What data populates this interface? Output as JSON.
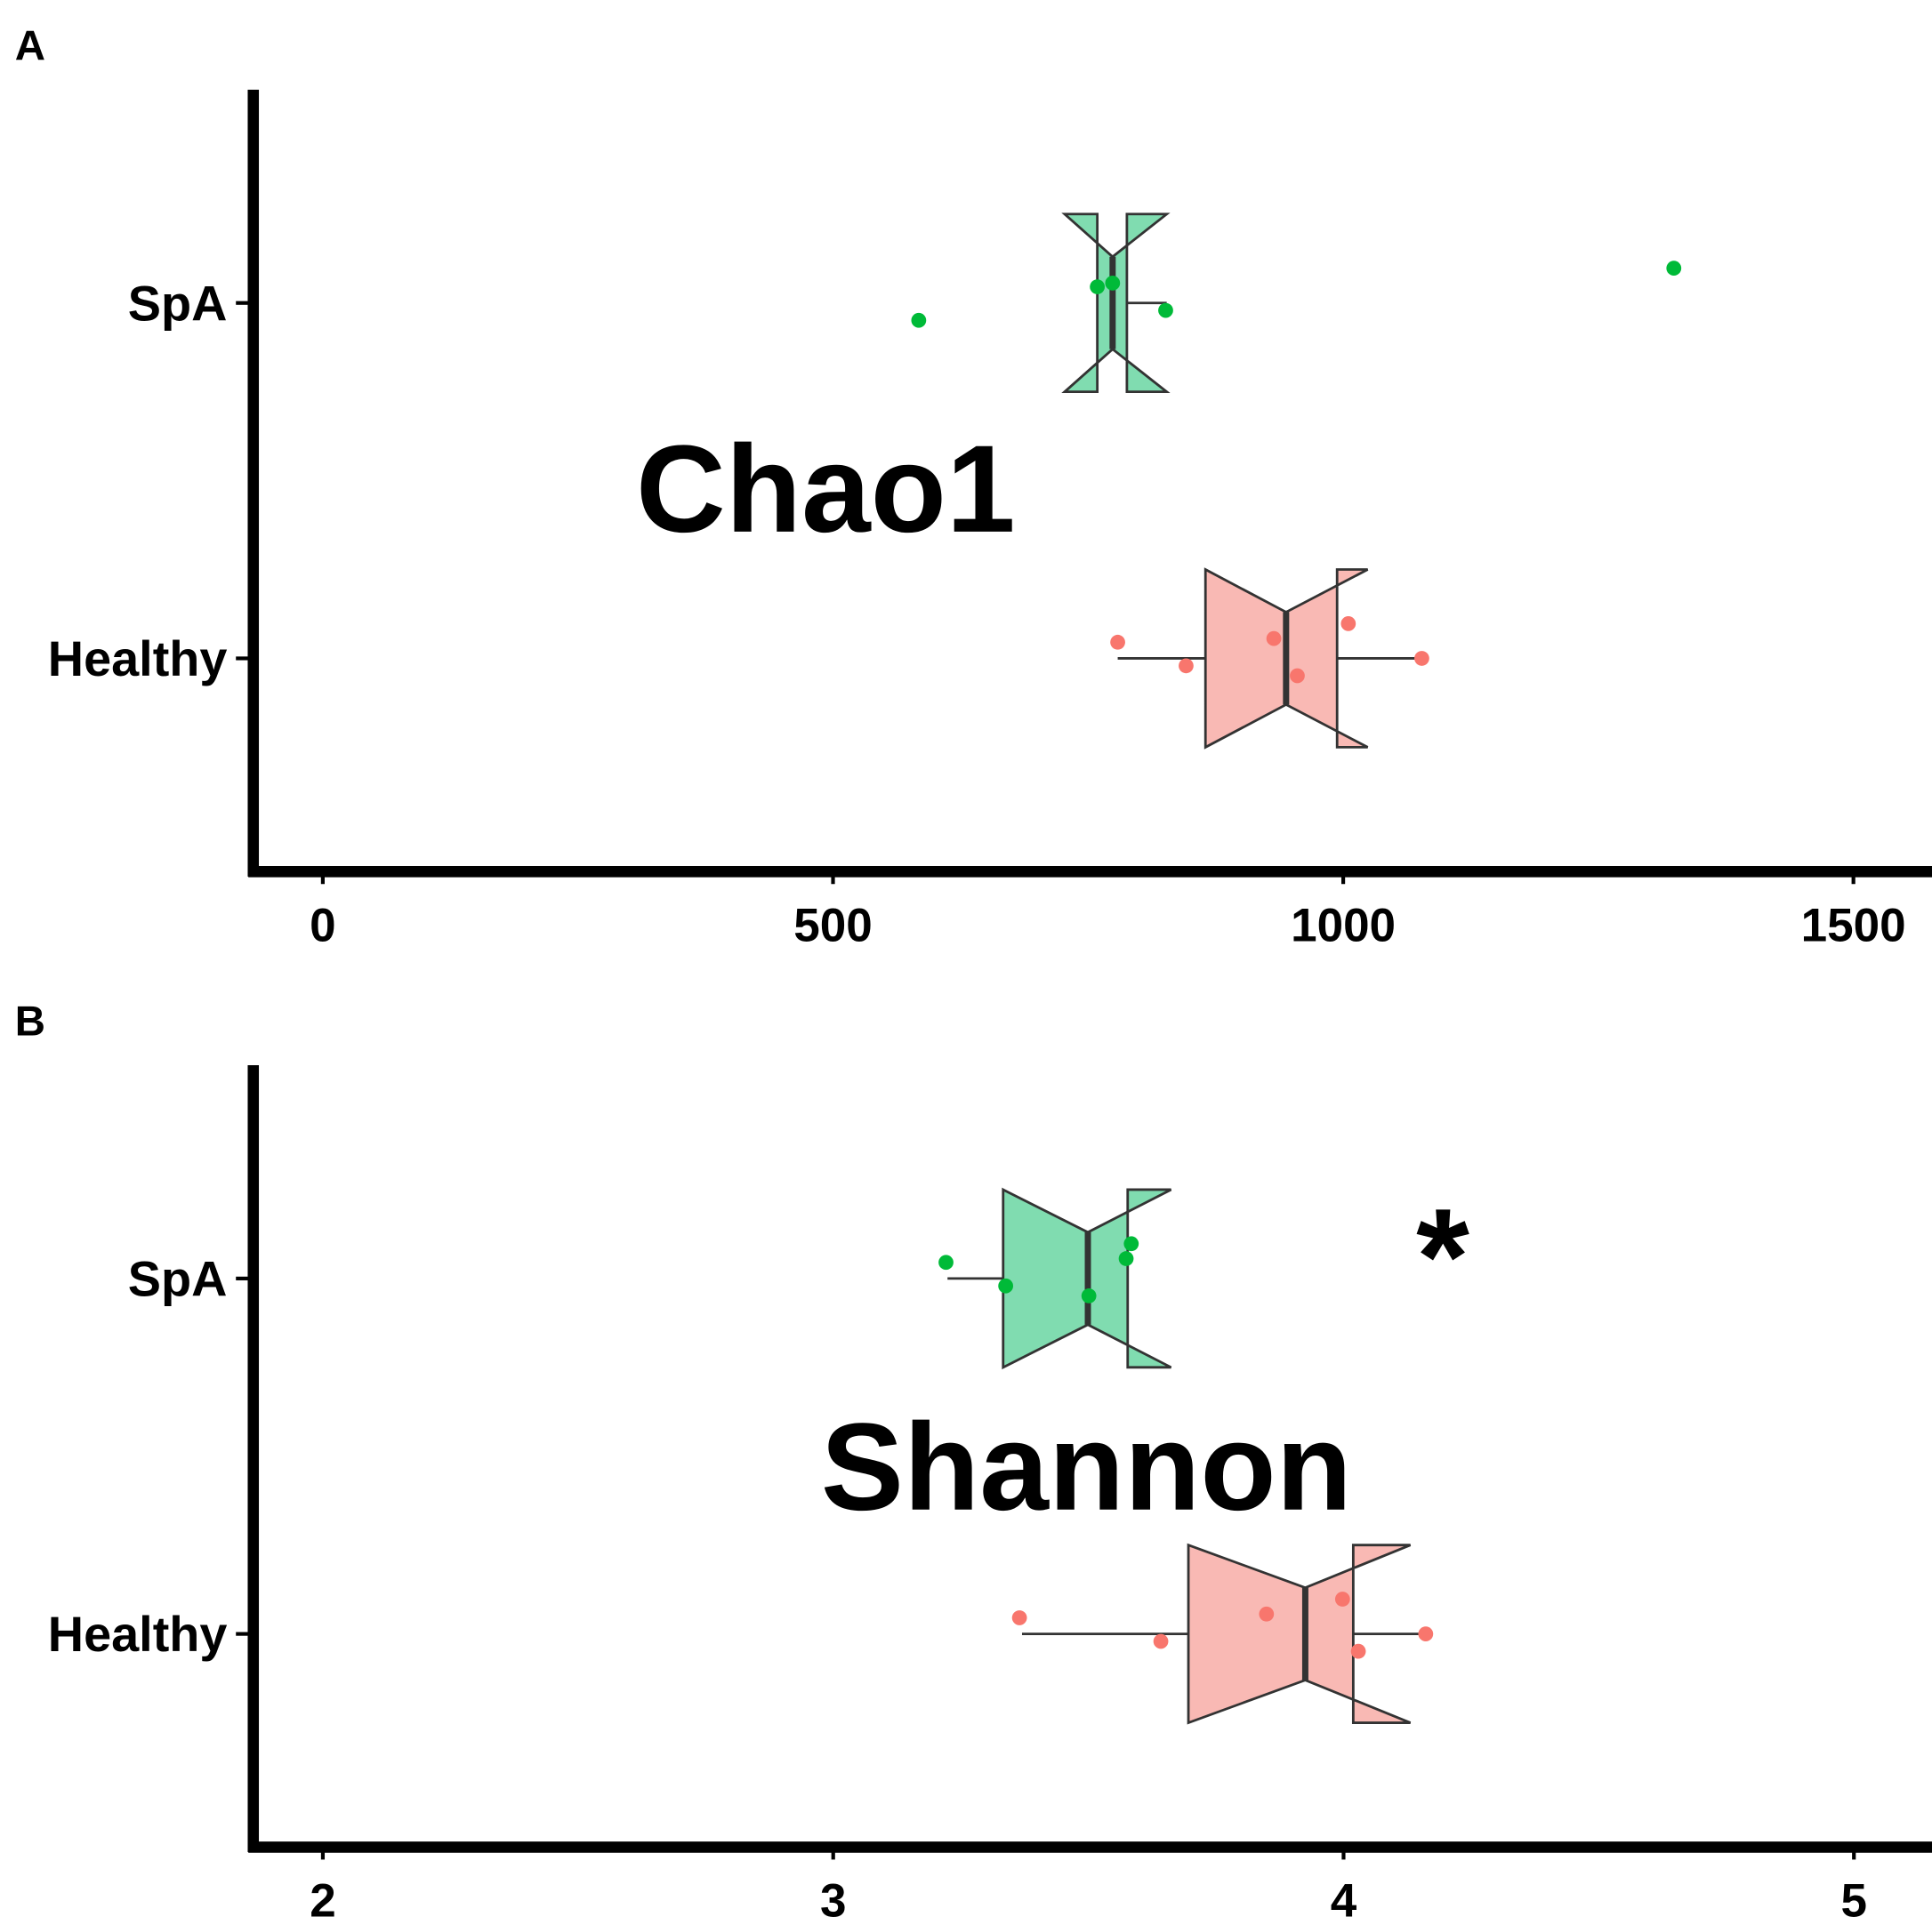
{
  "chart_data": [
    {
      "type": "boxplot",
      "panel": "A",
      "annotation": "Chao1",
      "categories": [
        "Healthy",
        "SpA"
      ],
      "xlim": [
        -73,
        1577
      ],
      "xticks": [
        0,
        500,
        1000,
        1500
      ],
      "notch": true,
      "series": [
        {
          "name": "Healthy",
          "color": "#f8766d",
          "fill": "#f9b9b4",
          "q1": 865,
          "median": 944,
          "q3": 994,
          "notch_low": 865,
          "notch_high": 1024,
          "whisker_low": 779,
          "whisker_high": 1077,
          "points": [
            779,
            846,
            932,
            955,
            1005,
            1077
          ]
        },
        {
          "name": "SpA",
          "color": "#00ba38",
          "fill": "#80dcb0",
          "q1": 759,
          "median": 774,
          "q3": 788,
          "notch_low": 727,
          "notch_high": 827,
          "whisker_low": 759,
          "whisker_high": 827,
          "points": [
            759,
            826,
            774,
            584,
            1324
          ]
        }
      ]
    },
    {
      "type": "boxplot",
      "panel": "B",
      "annotation": "Shannon",
      "significance": "*",
      "categories": [
        "Healthy",
        "SpA"
      ],
      "xlim": [
        1.854,
        5.153
      ],
      "xticks": [
        2,
        3,
        4,
        5
      ],
      "notch": true,
      "series": [
        {
          "name": "Healthy",
          "color": "#f8766d",
          "fill": "#f9b9b4",
          "q1": 3.696,
          "median": 3.925,
          "q3": 4.019,
          "notch_low": 3.696,
          "notch_high": 4.131,
          "whisker_low": 3.37,
          "whisker_high": 4.156,
          "points": [
            3.365,
            3.642,
            3.849,
            4.029,
            3.998,
            4.161
          ]
        },
        {
          "name": "SpA",
          "color": "#00ba38",
          "fill": "#80dcb0",
          "q1": 3.333,
          "median": 3.499,
          "q3": 3.577,
          "notch_low": 3.333,
          "notch_high": 3.662,
          "whisker_low": 3.224,
          "whisker_high": 3.577,
          "points": [
            3.221,
            3.338,
            3.574,
            3.501,
            3.584
          ]
        }
      ]
    }
  ]
}
